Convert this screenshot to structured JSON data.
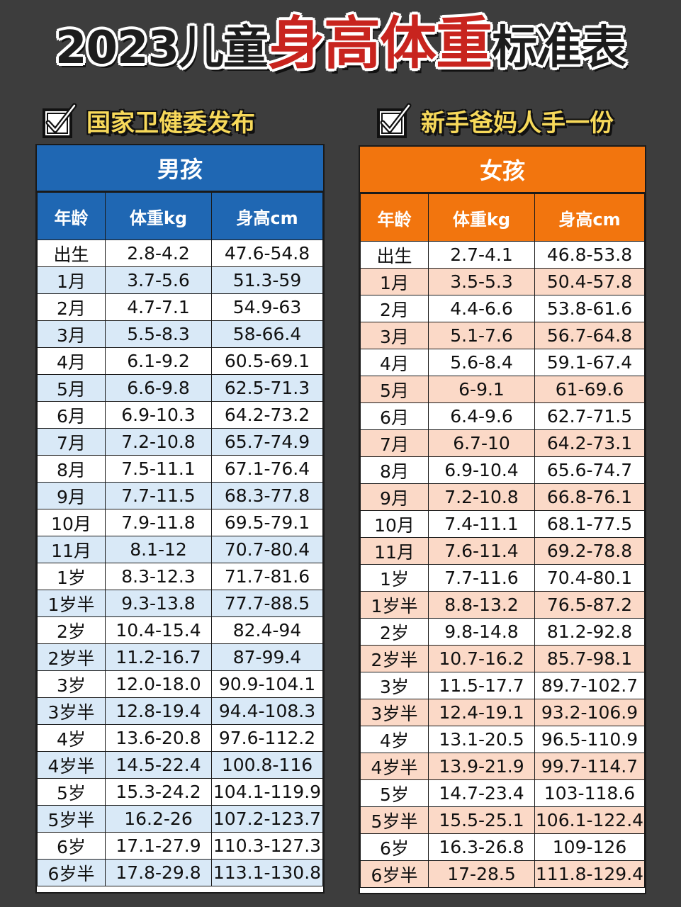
{
  "title": {
    "year": "2023儿童",
    "highlight": "身高体重",
    "suffix": "标准表"
  },
  "subtitle_left": {
    "icon": "checkbox-check-icon",
    "text": "国家卫健委发布"
  },
  "subtitle_right": {
    "icon": "checkbox-check-icon",
    "text": "新手爸妈人手一份"
  },
  "colors": {
    "background": "#3d3d3d",
    "boy_accent": "#1f67b3",
    "girl_accent": "#f2750e",
    "title_red": "#c8241e",
    "subtitle_yellow": "#f7d95a",
    "boy_stripe": "#d9e9f7",
    "girl_stripe": "#fbd9c7"
  },
  "boy": {
    "title": "男孩",
    "headers": [
      "年龄",
      "体重kg",
      "身高cm"
    ],
    "rows": [
      [
        "出生",
        "2.8-4.2",
        "47.6-54.8"
      ],
      [
        "1月",
        "3.7-5.6",
        "51.3-59"
      ],
      [
        "2月",
        "4.7-7.1",
        "54.9-63"
      ],
      [
        "3月",
        "5.5-8.3",
        "58-66.4"
      ],
      [
        "4月",
        "6.1-9.2",
        "60.5-69.1"
      ],
      [
        "5月",
        "6.6-9.8",
        "62.5-71.3"
      ],
      [
        "6月",
        "6.9-10.3",
        "64.2-73.2"
      ],
      [
        "7月",
        "7.2-10.8",
        "65.7-74.9"
      ],
      [
        "8月",
        "7.5-11.1",
        "67.1-76.4"
      ],
      [
        "9月",
        "7.7-11.5",
        "68.3-77.8"
      ],
      [
        "10月",
        "7.9-11.8",
        "69.5-79.1"
      ],
      [
        "11月",
        "8.1-12",
        "70.7-80.4"
      ],
      [
        "1岁",
        "8.3-12.3",
        "71.7-81.6"
      ],
      [
        "1岁半",
        "9.3-13.8",
        "77.7-88.5"
      ],
      [
        "2岁",
        "10.4-15.4",
        "82.4-94"
      ],
      [
        "2岁半",
        "11.2-16.7",
        "87-99.4"
      ],
      [
        "3岁",
        "12.0-18.0",
        "90.9-104.1"
      ],
      [
        "3岁半",
        "12.8-19.4",
        "94.4-108.3"
      ],
      [
        "4岁",
        "13.6-20.8",
        "97.6-112.2"
      ],
      [
        "4岁半",
        "14.5-22.4",
        "100.8-116"
      ],
      [
        "5岁",
        "15.3-24.2",
        "104.1-119.9"
      ],
      [
        "5岁半",
        "16.2-26",
        "107.2-123.7"
      ],
      [
        "6岁",
        "17.1-27.9",
        "110.3-127.3"
      ],
      [
        "6岁半",
        "17.8-29.8",
        "113.1-130.8"
      ]
    ]
  },
  "girl": {
    "title": "女孩",
    "headers": [
      "年龄",
      "体重kg",
      "身高cm"
    ],
    "rows": [
      [
        "出生",
        "2.7-4.1",
        "46.8-53.8"
      ],
      [
        "1月",
        "3.5-5.3",
        "50.4-57.8"
      ],
      [
        "2月",
        "4.4-6.6",
        "53.8-61.6"
      ],
      [
        "3月",
        "5.1-7.6",
        "56.7-64.8"
      ],
      [
        "4月",
        "5.6-8.4",
        "59.1-67.4"
      ],
      [
        "5月",
        "6-9.1",
        "61-69.6"
      ],
      [
        "6月",
        "6.4-9.6",
        "62.7-71.5"
      ],
      [
        "7月",
        "6.7-10",
        "64.2-73.1"
      ],
      [
        "8月",
        "6.9-10.4",
        "65.6-74.7"
      ],
      [
        "9月",
        "7.2-10.8",
        "66.8-76.1"
      ],
      [
        "10月",
        "7.4-11.1",
        "68.1-77.5"
      ],
      [
        "11月",
        "7.6-11.4",
        "69.2-78.8"
      ],
      [
        "1岁",
        "7.7-11.6",
        "70.4-80.1"
      ],
      [
        "1岁半",
        "8.8-13.2",
        "76.5-87.2"
      ],
      [
        "2岁",
        "9.8-14.8",
        "81.2-92.8"
      ],
      [
        "2岁半",
        "10.7-16.2",
        "85.7-98.1"
      ],
      [
        "3岁",
        "11.5-17.7",
        "89.7-102.7"
      ],
      [
        "3岁半",
        "12.4-19.1",
        "93.2-106.9"
      ],
      [
        "4岁",
        "13.1-20.5",
        "96.5-110.9"
      ],
      [
        "4岁半",
        "13.9-21.9",
        "99.7-114.7"
      ],
      [
        "5岁",
        "14.7-23.4",
        "103-118.6"
      ],
      [
        "5岁半",
        "15.5-25.1",
        "106.1-122.4"
      ],
      [
        "6岁",
        "16.3-26.8",
        "109-126"
      ],
      [
        "6岁半",
        "17-28.5",
        "111.8-129.4"
      ]
    ]
  }
}
